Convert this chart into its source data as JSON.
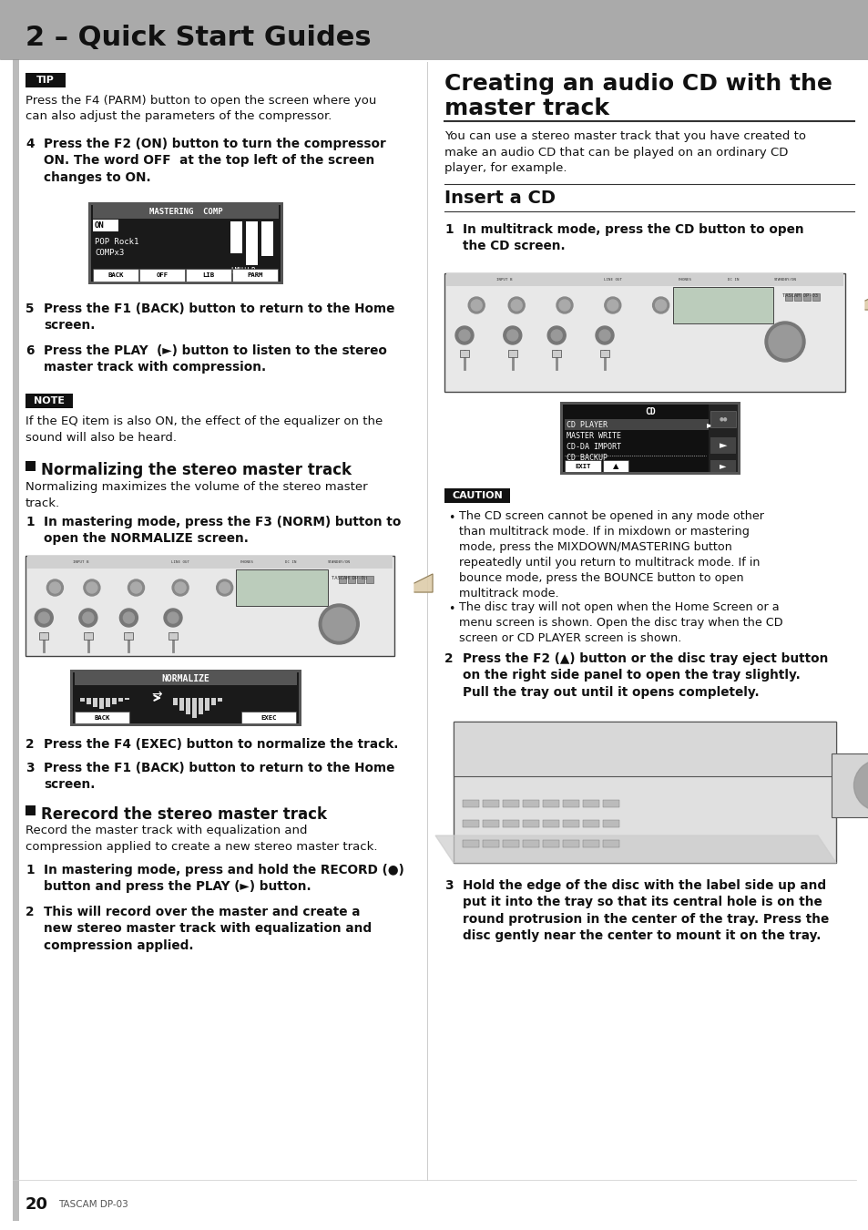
{
  "title_bar_text": "2 – Quick Start Guides",
  "title_bar_bg": "#aaaaaa",
  "page_bg": "#ffffff",
  "footer_page": "20",
  "footer_model": "TASCAM DP-03",
  "tip_text": "Press the F4 (PARM) button to open the screen where you\ncan also adjust the parameters of the compressor.",
  "step4_text": "Press the F2 (ON) button to turn the compressor\nON. The word OFF  at the top left of the screen\nchanges to ON.",
  "step5_text": "Press the F1 (BACK) button to return to the Home\nscreen.",
  "step6_text": "Press the PLAY  (►) button to listen to the stereo\nmaster track with compression.",
  "note_text": "If the EQ item is also ON, the effect of the equalizer on the\nsound will also be heard.",
  "norm_title": "Normalizing the stereo master track",
  "norm_body": "Normalizing maximizes the volume of the stereo master\ntrack.",
  "norm_step1": "In mastering mode, press the F3 (NORM) button to\nopen the NORMALIZE screen.",
  "norm_step2": "Press the F4 (EXEC) button to normalize the track.",
  "norm_step3": "Press the F1 (BACK) button to return to the Home\nscreen.",
  "rerec_title": "Rerecord the stereo master track",
  "rerec_body": "Record the master track with equalization and\ncompression applied to create a new stereo master track.",
  "rerec_step1": "In mastering mode, press and hold the RECORD (●)\nbutton and press the PLAY (►) button.",
  "rerec_step2": "This will record over the master and create a\nnew stereo master track with equalization and\ncompression applied.",
  "right_title1": "Creating an audio CD with the",
  "right_title2": "master track",
  "intro_text": "You can use a stereo master track that you have created to\nmake an audio CD that can be played on an ordinary CD\nplayer, for example.",
  "insert_title": "Insert a CD",
  "ins_step1": "In multitrack mode, press the CD button to open\nthe CD screen.",
  "caution1": "The CD screen cannot be opened in any mode other\nthan multitrack mode. If in mixdown or mastering\nmode, press the MIXDOWN/MASTERING button\nrepeatedly until you return to multitrack mode. If in\nbounce mode, press the BOUNCE button to open\nmultitrack mode.",
  "caution2": "The disc tray will not open when the Home Screen or a\nmenu screen is shown. Open the disc tray when the CD\nscreen or CD PLAYER screen is shown.",
  "ins_step2": "Press the F2 (▲) button or the disc tray eject button\non the right side panel to open the tray slightly.\nPull the tray out until it opens completely.",
  "ins_step3": "Hold the edge of the disc with the label side up and\nput it into the tray so that its central hole is on the\nround protrusion in the center of the tray. Press the\ndisc gently near the center to mount it on the tray."
}
